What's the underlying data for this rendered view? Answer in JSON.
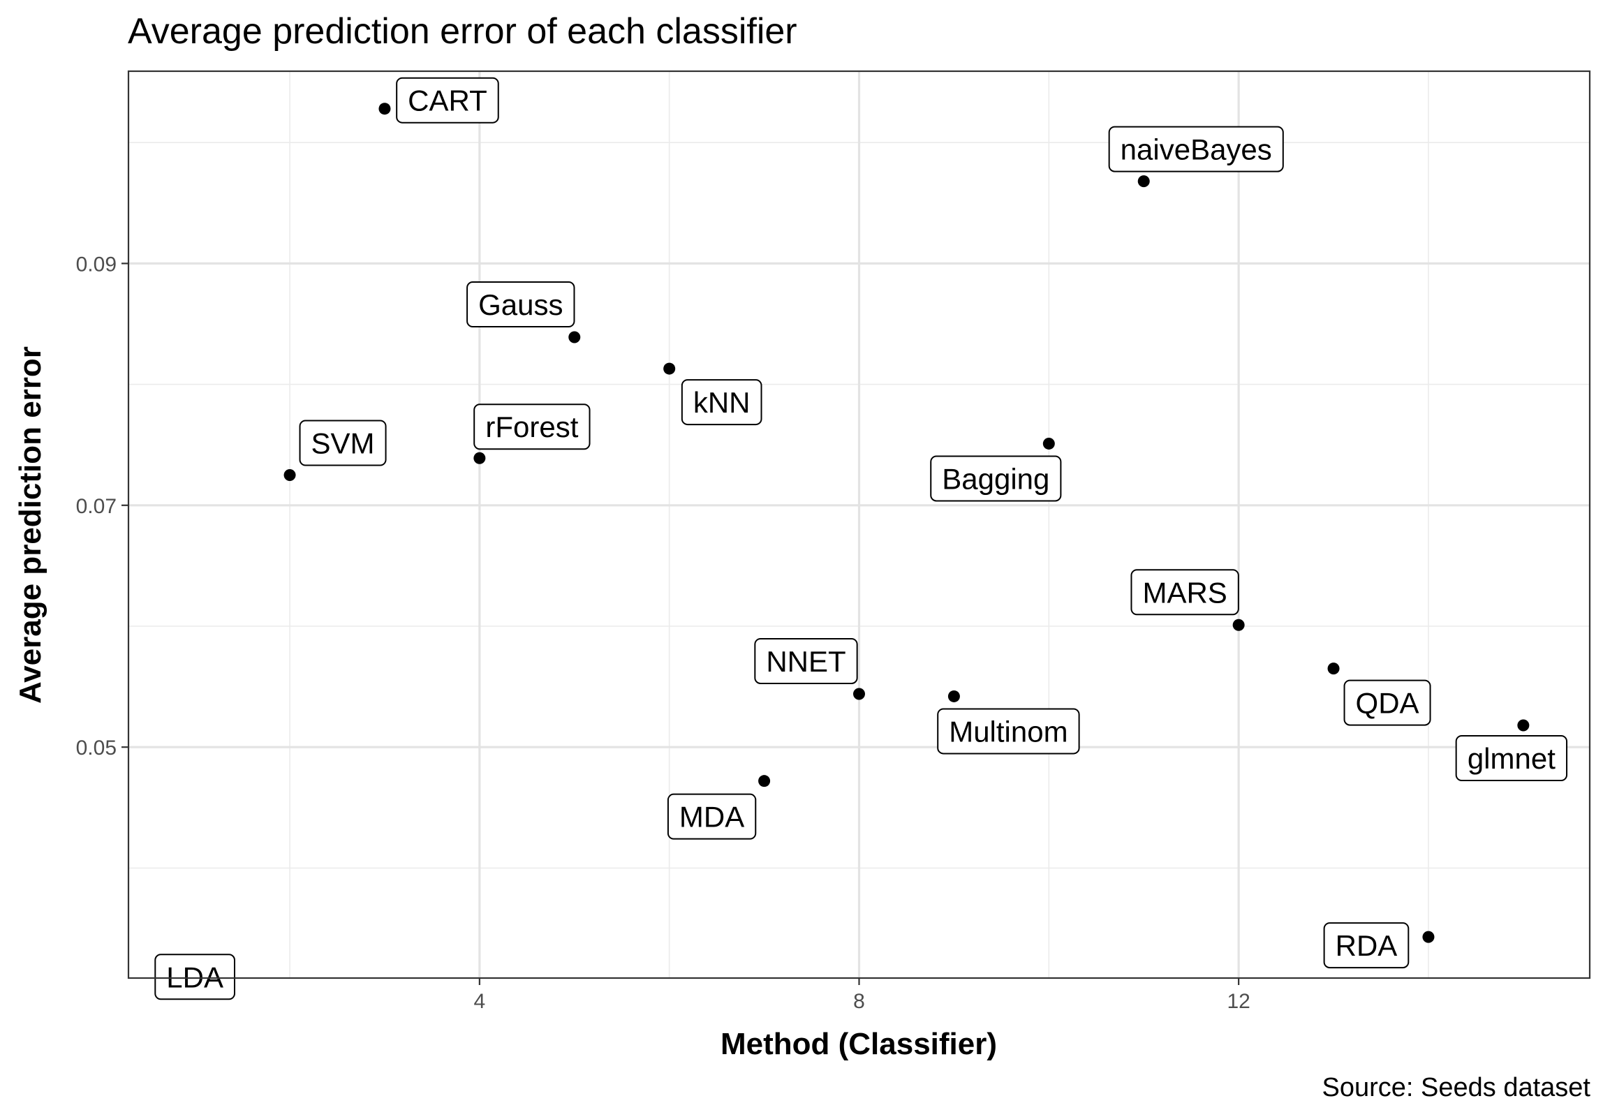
{
  "chart_data": {
    "type": "scatter",
    "title": "Average prediction error of each classifier",
    "xlabel": "Method (Classifier)",
    "ylabel": "Average prediction error",
    "caption": "Source: Seeds dataset",
    "xlim": [
      0.3,
      15.7
    ],
    "ylim": [
      0.0309,
      0.1059
    ],
    "x_ticks": [
      4,
      8,
      12
    ],
    "x_tick_labels": [
      "4",
      "8",
      "12"
    ],
    "y_ticks": [
      0.05,
      0.07,
      0.09
    ],
    "y_tick_labels": [
      "0.05",
      "0.07",
      "0.09"
    ],
    "grid": true,
    "legend": "none",
    "points": [
      {
        "label": "LDA",
        "x": 1,
        "y": 0.031
      },
      {
        "label": "SVM",
        "x": 2,
        "y": 0.0725
      },
      {
        "label": "CART",
        "x": 3,
        "y": 0.1028
      },
      {
        "label": "rForest",
        "x": 4,
        "y": 0.0739
      },
      {
        "label": "Gauss",
        "x": 5,
        "y": 0.0839
      },
      {
        "label": "kNN",
        "x": 6,
        "y": 0.0813
      },
      {
        "label": "MDA",
        "x": 7,
        "y": 0.0472
      },
      {
        "label": "NNET",
        "x": 8,
        "y": 0.0544
      },
      {
        "label": "Multinom",
        "x": 9,
        "y": 0.0542
      },
      {
        "label": "Bagging",
        "x": 10,
        "y": 0.0751
      },
      {
        "label": "naiveBayes",
        "x": 11,
        "y": 0.0968
      },
      {
        "label": "MARS",
        "x": 12,
        "y": 0.0601
      },
      {
        "label": "QDA",
        "x": 13,
        "y": 0.0565
      },
      {
        "label": "RDA",
        "x": 14,
        "y": 0.0343
      },
      {
        "label": "glmnet",
        "x": 15,
        "y": 0.0518
      }
    ]
  }
}
